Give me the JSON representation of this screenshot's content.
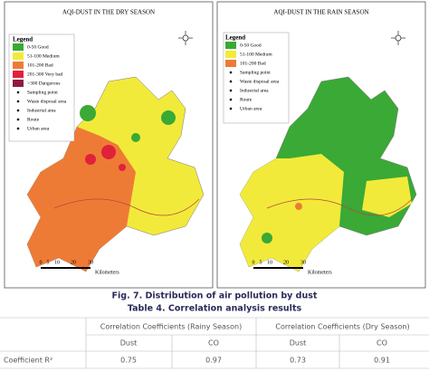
{
  "maps": [
    {
      "title": "AQI-DUST IN THE DRY SEASON",
      "legend_title": "Legend",
      "legend": [
        {
          "label": "0-50 Good",
          "color": "#3aa935"
        },
        {
          "label": "51-100 Medium",
          "color": "#f2ea3a"
        },
        {
          "label": "101-200 Bad",
          "color": "#ee7b35"
        },
        {
          "label": "201-300 Very bad",
          "color": "#e0213a"
        },
        {
          "label": ">300 Dangerous",
          "color": "#8e1a3e"
        },
        {
          "label": "Sampling point"
        },
        {
          "label": "Waste disposal area"
        },
        {
          "label": "Industrial area"
        },
        {
          "label": "Route"
        },
        {
          "label": "Urban area"
        }
      ],
      "scale": [
        "0",
        "5",
        "10",
        "20",
        "30"
      ],
      "scale_unit": "Kilometers"
    },
    {
      "title": "AQI-DUST IN THE RAIN SEASON",
      "legend_title": "Legend",
      "legend": [
        {
          "label": "0-50 Good",
          "color": "#3aa935"
        },
        {
          "label": "51-100 Medium",
          "color": "#f2ea3a"
        },
        {
          "label": "101-200 Bad",
          "color": "#ee7b35"
        },
        {
          "label": "Sampling point"
        },
        {
          "label": "Waste disposal area"
        },
        {
          "label": "Industrial area"
        },
        {
          "label": "Route"
        },
        {
          "label": "Urban area"
        }
      ],
      "scale": [
        "0",
        "5",
        "10",
        "20",
        "30"
      ],
      "scale_unit": "Kilometers"
    }
  ],
  "figure_caption": "Fig. 7. Distribution of air pollution by dust",
  "table_caption": "Table 4. Correlation analysis results",
  "table": {
    "header": [
      "Correlation Coefficients (Rainy Season)",
      "Correlation Coefficients (Dry Season)"
    ],
    "subheader": [
      "Dust",
      "CO",
      "Dust",
      "CO"
    ],
    "rows": [
      [
        "Coefficient R²",
        "0.75",
        "0.97",
        "0.73",
        "0.91"
      ]
    ]
  }
}
